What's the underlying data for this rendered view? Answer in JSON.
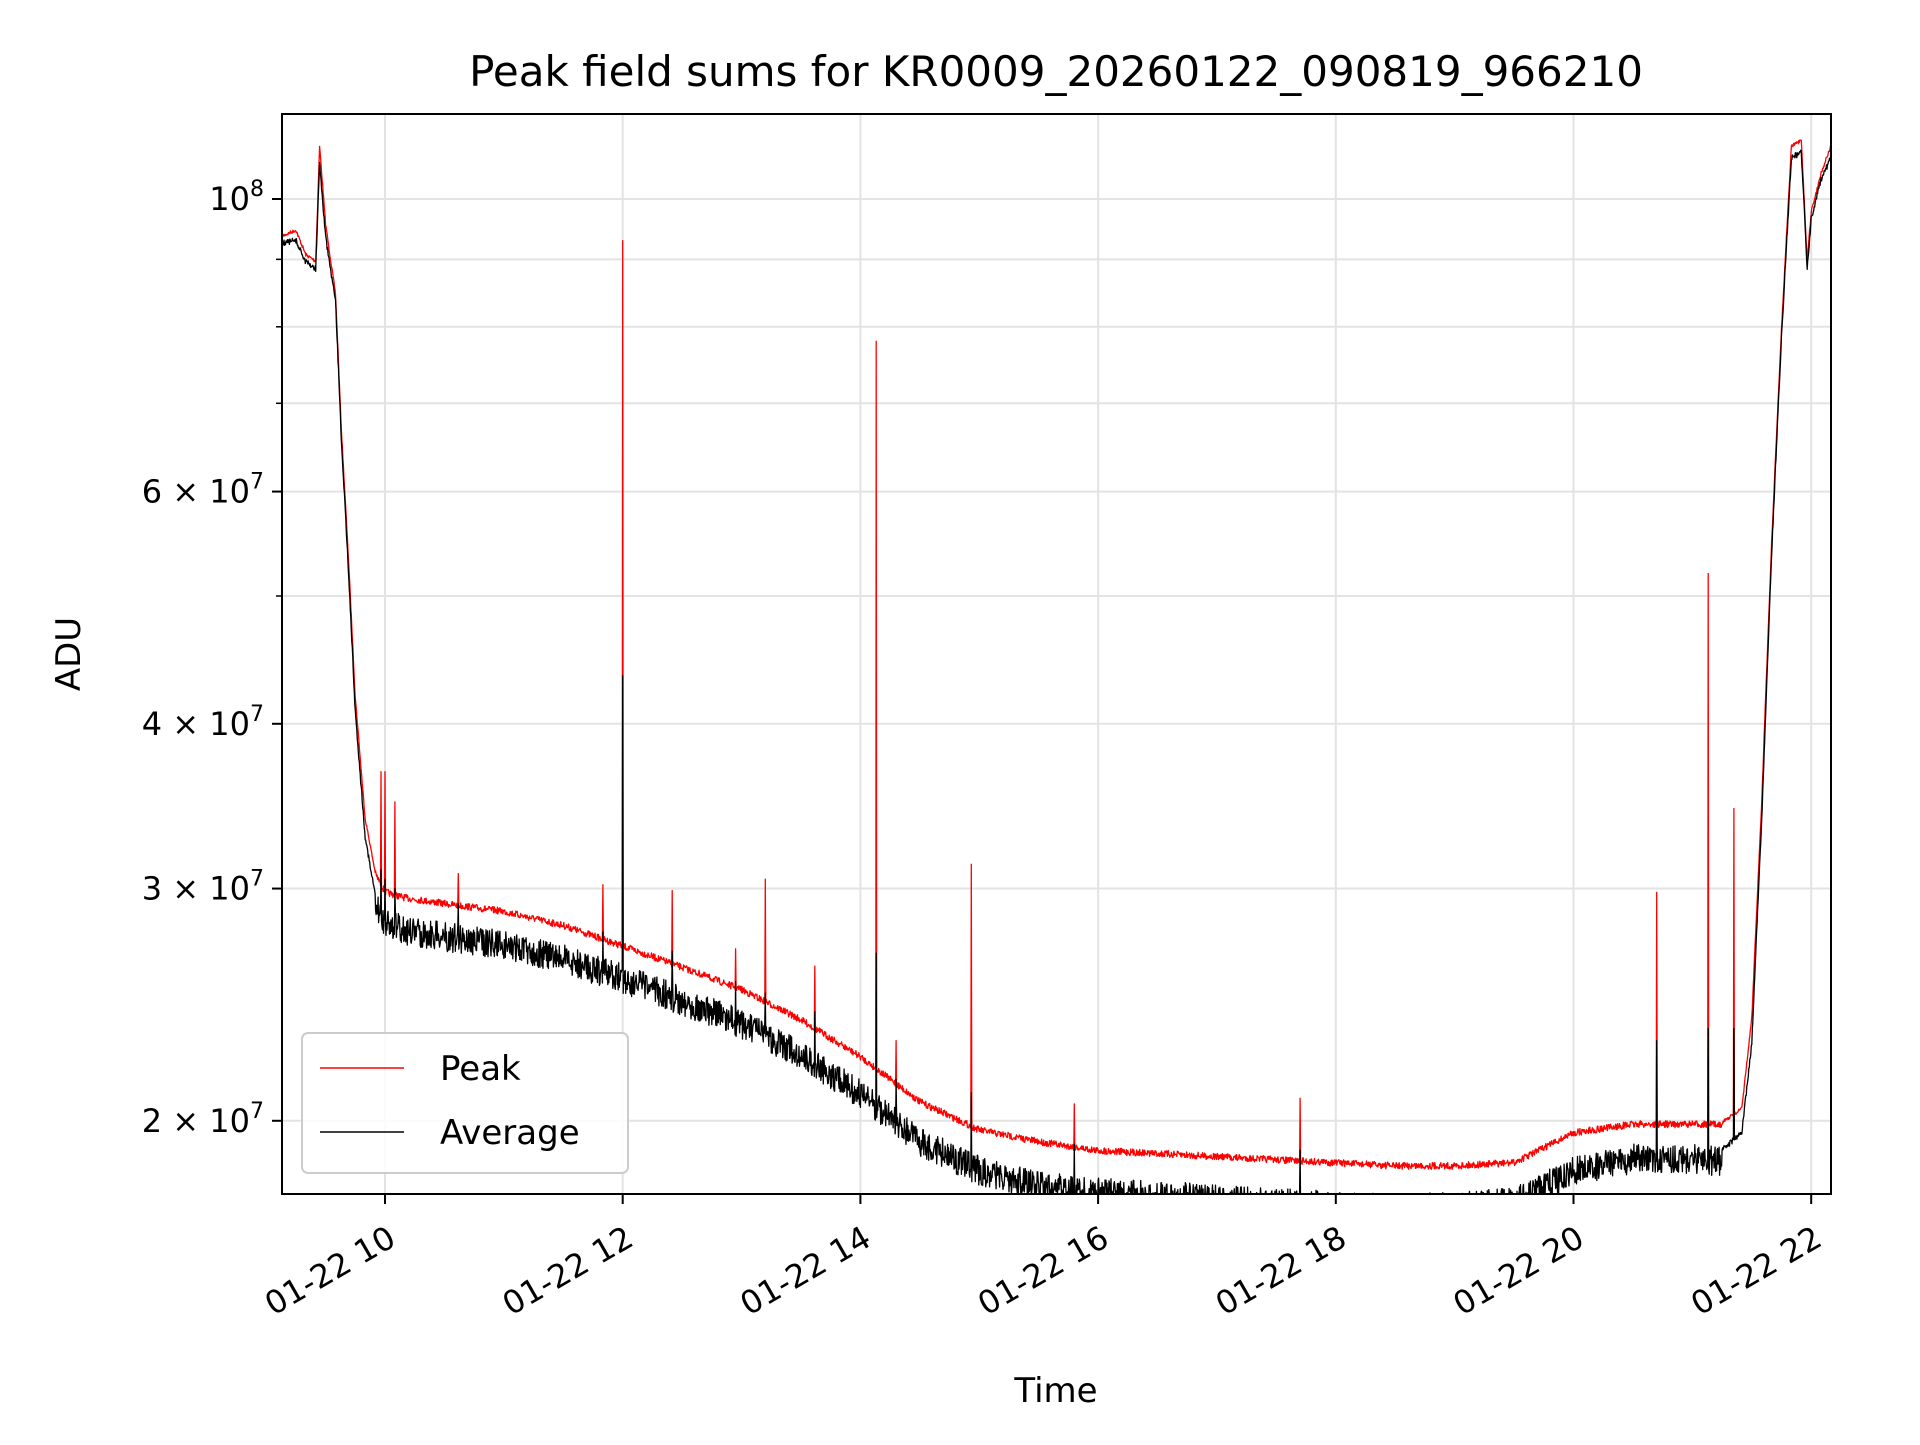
{
  "chart_data": {
    "type": "line",
    "title": "Peak field sums for KR0009_20260122_090819_966210",
    "xlabel": "Time",
    "ylabel": "ADU",
    "yscale": "log",
    "ylim": [
      17600000,
      116000000
    ],
    "xlim": [
      "01-22 09:08",
      "01-22 22:10"
    ],
    "grid": true,
    "legend_position": "lower-left",
    "x_ticks": [
      "01-22 10",
      "01-22 12",
      "01-22 14",
      "01-22 16",
      "01-22 18",
      "01-22 20",
      "01-22 22"
    ],
    "y_ticks": [
      {
        "label_base": "10",
        "label_exp": "8",
        "value": 100000000
      },
      {
        "label_base": "6 × 10",
        "label_exp": "7",
        "value": 60000000
      },
      {
        "label_base": "4 × 10",
        "label_exp": "7",
        "value": 40000000
      },
      {
        "label_base": "3 × 10",
        "label_exp": "7",
        "value": 30000000
      },
      {
        "label_base": "2 × 10",
        "label_exp": "7",
        "value": 20000000
      }
    ],
    "series": [
      {
        "name": "Peak",
        "color": "#ff0000",
        "x": [
          "01-22 09:08",
          "01-22 09:15",
          "01-22 09:20",
          "01-22 09:25",
          "01-22 09:27",
          "01-22 09:30",
          "01-22 09:35",
          "01-22 09:38",
          "01-22 09:42",
          "01-22 09:45",
          "01-22 09:50",
          "01-22 09:55",
          "01-22 10:00",
          "01-22 10:10",
          "01-22 10:30",
          "01-22 11:00",
          "01-22 11:30",
          "01-22 12:00",
          "01-22 12:30",
          "01-22 13:00",
          "01-22 13:30",
          "01-22 14:00",
          "01-22 14:30",
          "01-22 15:00",
          "01-22 15:30",
          "01-22 16:00",
          "01-22 16:30",
          "01-22 17:00",
          "01-22 17:30",
          "01-22 18:00",
          "01-22 18:30",
          "01-22 19:00",
          "01-22 19:30",
          "01-22 20:00",
          "01-22 20:30",
          "01-22 21:00",
          "01-22 21:15",
          "01-22 21:25",
          "01-22 21:30",
          "01-22 21:35",
          "01-22 21:40",
          "01-22 21:45",
          "01-22 21:50",
          "01-22 21:55",
          "01-22 21:58",
          "01-22 22:00",
          "01-22 22:05",
          "01-22 22:10"
        ],
        "values": [
          94000000,
          95000000,
          91000000,
          90000000,
          110000000,
          96000000,
          85000000,
          67000000,
          52000000,
          42000000,
          34000000,
          31000000,
          30000000,
          29700000,
          29400000,
          29000000,
          28300000,
          27300000,
          26300000,
          25300000,
          24000000,
          22500000,
          20800000,
          19800000,
          19400000,
          19100000,
          19000000,
          18900000,
          18800000,
          18700000,
          18600000,
          18600000,
          18700000,
          19700000,
          20000000,
          20000000,
          20000000,
          20500000,
          24000000,
          35000000,
          55000000,
          80000000,
          110000000,
          111000000,
          90000000,
          98000000,
          105000000,
          110000000
        ]
      },
      {
        "name": "Average",
        "color": "#000000",
        "x": [
          "01-22 09:08",
          "01-22 09:15",
          "01-22 09:20",
          "01-22 09:25",
          "01-22 09:27",
          "01-22 09:30",
          "01-22 09:35",
          "01-22 09:38",
          "01-22 09:42",
          "01-22 09:45",
          "01-22 09:50",
          "01-22 09:55",
          "01-22 10:00",
          "01-22 10:10",
          "01-22 10:30",
          "01-22 11:00",
          "01-22 11:30",
          "01-22 12:00",
          "01-22 12:30",
          "01-22 13:00",
          "01-22 13:30",
          "01-22 14:00",
          "01-22 14:30",
          "01-22 15:00",
          "01-22 15:30",
          "01-22 16:00",
          "01-22 16:30",
          "01-22 17:00",
          "01-22 17:30",
          "01-22 18:00",
          "01-22 18:30",
          "01-22 19:00",
          "01-22 19:30",
          "01-22 20:00",
          "01-22 20:30",
          "01-22 21:00",
          "01-22 21:15",
          "01-22 21:25",
          "01-22 21:30",
          "01-22 21:35",
          "01-22 21:40",
          "01-22 21:45",
          "01-22 21:50",
          "01-22 21:55",
          "01-22 21:58",
          "01-22 22:00",
          "01-22 22:05",
          "01-22 22:10"
        ],
        "values": [
          93000000,
          93500000,
          90000000,
          89000000,
          107000000,
          94000000,
          84000000,
          66000000,
          51000000,
          41000000,
          33000000,
          29800000,
          29000000,
          28600000,
          28300000,
          27900000,
          27200000,
          26300000,
          25300000,
          24300000,
          23000000,
          21500000,
          19800000,
          18800000,
          18300000,
          18100000,
          18000000,
          17900000,
          17800000,
          17700000,
          17650000,
          17650000,
          17800000,
          18800000,
          19200000,
          19200000,
          19100000,
          19700000,
          23000000,
          34000000,
          54000000,
          79000000,
          108000000,
          109000000,
          89000000,
          97000000,
          104000000,
          108000000
        ]
      }
    ],
    "spikes": [
      {
        "x": "01-22 09:58",
        "peak": 36800000,
        "average": 31000000
      },
      {
        "x": "01-22 10:00",
        "peak": 36800000,
        "average": 30500000
      },
      {
        "x": "01-22 10:05",
        "peak": 34900000,
        "average": 30000000
      },
      {
        "x": "01-22 10:37",
        "peak": 30800000,
        "average": 29200000
      },
      {
        "x": "01-22 11:50",
        "peak": 30200000,
        "average": 27800000
      },
      {
        "x": "01-22 12:00",
        "peak": 93000000,
        "average": 43500000
      },
      {
        "x": "01-22 12:25",
        "peak": 29900000,
        "average": 26900000
      },
      {
        "x": "01-22 12:57",
        "peak": 27000000,
        "average": 25500000
      },
      {
        "x": "01-22 13:12",
        "peak": 30500000,
        "average": 25000000
      },
      {
        "x": "01-22 13:37",
        "peak": 26200000,
        "average": 24200000
      },
      {
        "x": "01-22 14:08",
        "peak": 78000000,
        "average": 26800000
      },
      {
        "x": "01-22 14:18",
        "peak": 23000000,
        "average": 21500000
      },
      {
        "x": "01-22 14:56",
        "peak": 31300000,
        "average": 21000000
      },
      {
        "x": "01-22 15:48",
        "peak": 20600000,
        "average": 19200000
      },
      {
        "x": "01-22 17:42",
        "peak": 20800000,
        "average": 19000000
      },
      {
        "x": "01-22 20:42",
        "peak": 29800000,
        "average": 23000000
      },
      {
        "x": "01-22 21:08",
        "peak": 52000000,
        "average": 23500000
      },
      {
        "x": "01-22 21:21",
        "peak": 34500000,
        "average": 23500000
      }
    ]
  }
}
